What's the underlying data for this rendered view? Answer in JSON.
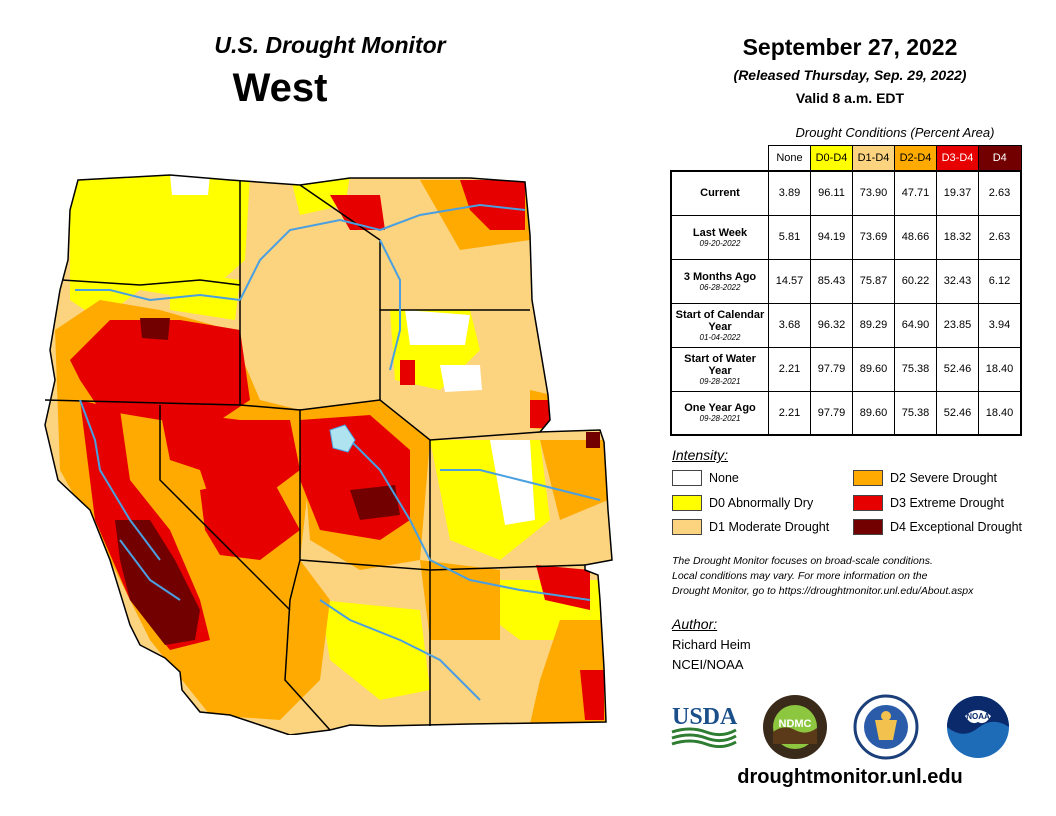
{
  "header": {
    "title": "U.S. Drought Monitor",
    "region": "West",
    "date": "September 27, 2022",
    "released": "(Released Thursday, Sep. 29, 2022)",
    "valid": "Valid 8 a.m. EDT"
  },
  "table": {
    "caption": "Drought Conditions (Percent Area)",
    "columns": [
      {
        "label": "None",
        "color": "#ffffff"
      },
      {
        "label": "D0-D4",
        "color": "#ffff00"
      },
      {
        "label": "D1-D4",
        "color": "#fcd37f"
      },
      {
        "label": "D2-D4",
        "color": "#ffaa00"
      },
      {
        "label": "D3-D4",
        "color": "#e60000"
      },
      {
        "label": "D4",
        "color": "#730000"
      }
    ],
    "rows": [
      {
        "label": "Current",
        "sub": "",
        "values": [
          "3.89",
          "96.11",
          "73.90",
          "47.71",
          "19.37",
          "2.63"
        ]
      },
      {
        "label": "Last Week",
        "sub": "09-20-2022",
        "values": [
          "5.81",
          "94.19",
          "73.69",
          "48.66",
          "18.32",
          "2.63"
        ]
      },
      {
        "label": "3 Months Ago",
        "sub": "06-28-2022",
        "values": [
          "14.57",
          "85.43",
          "75.87",
          "60.22",
          "32.43",
          "6.12"
        ]
      },
      {
        "label": "Start of Calendar Year",
        "sub": "01-04-2022",
        "values": [
          "3.68",
          "96.32",
          "89.29",
          "64.90",
          "23.85",
          "3.94"
        ]
      },
      {
        "label": "Start of Water Year",
        "sub": "09-28-2021",
        "values": [
          "2.21",
          "97.79",
          "89.60",
          "75.38",
          "52.46",
          "18.40"
        ]
      },
      {
        "label": "One Year Ago",
        "sub": "09-28-2021",
        "values": [
          "2.21",
          "97.79",
          "89.60",
          "75.38",
          "52.46",
          "18.40"
        ]
      }
    ]
  },
  "legend": {
    "title": "Intensity:",
    "items": [
      {
        "label": "None",
        "color": "#ffffff"
      },
      {
        "label": "D0 Abnormally Dry",
        "color": "#ffff00"
      },
      {
        "label": "D1 Moderate Drought",
        "color": "#fcd37f"
      },
      {
        "label": "D2 Severe Drought",
        "color": "#ffaa00"
      },
      {
        "label": "D3 Extreme Drought",
        "color": "#e60000"
      },
      {
        "label": "D4 Exceptional Drought",
        "color": "#730000"
      }
    ]
  },
  "note": [
    "The Drought Monitor focuses on broad-scale conditions.",
    "Local conditions may vary. For more information on the",
    "Drought Monitor, go to https://droughtmonitor.unl.edu/About.aspx"
  ],
  "author": {
    "heading": "Author:",
    "name": "Richard Heim",
    "org": "NCEI/NOAA"
  },
  "logos": {
    "usda": "USDA",
    "ndmc": "NDMC",
    "noaa": "NOAA"
  },
  "url": "droughtmonitor.unl.edu",
  "map_colors": {
    "none": "#ffffff",
    "d0": "#ffff00",
    "d1": "#fcd37f",
    "d2": "#ffaa00",
    "d3": "#e60000",
    "d4": "#730000",
    "rivers": "#4a9fe0",
    "borders": "#000000",
    "counties": "#8a7a55"
  }
}
